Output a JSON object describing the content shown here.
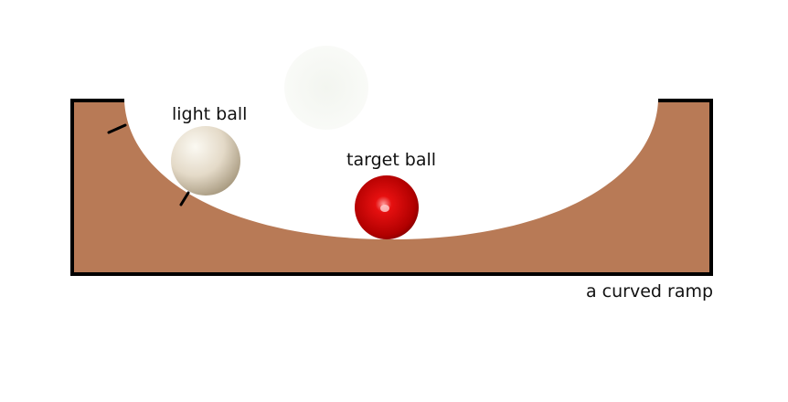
{
  "labels": {
    "light_ball": "light ball",
    "target_ball": "target ball",
    "ramp": "a curved ramp"
  },
  "colors": {
    "ramp_fill": "#b87a56",
    "ramp_outline": "#000000",
    "light_ball": "#e6dccb",
    "target_ball": "#c40000",
    "ghost_ball": "#f6f8f4",
    "background": "#ffffff"
  }
}
